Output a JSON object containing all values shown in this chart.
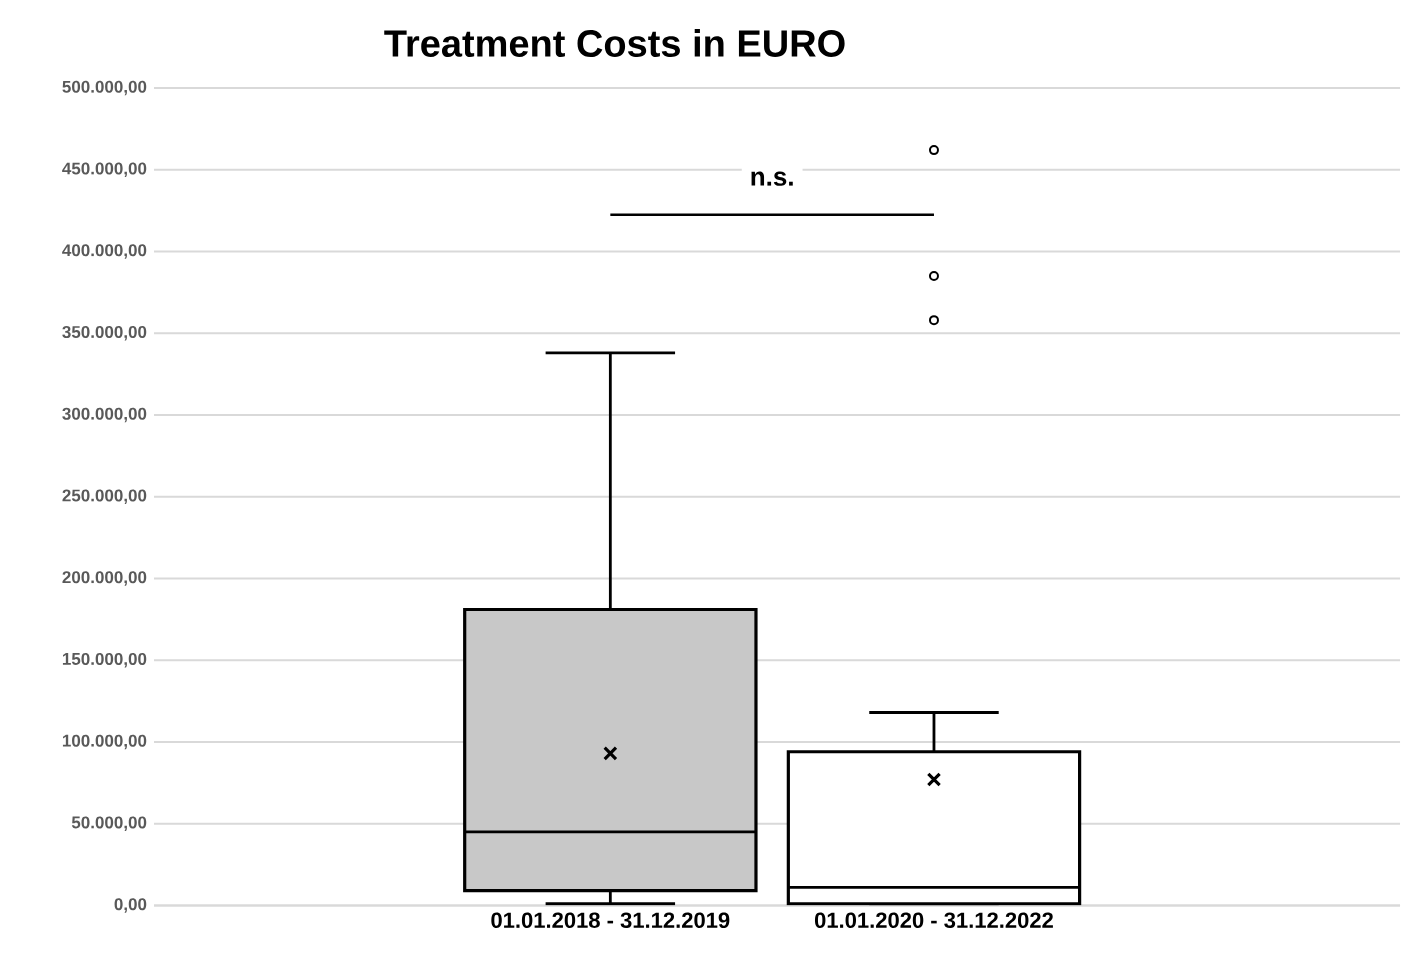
{
  "chart_data": {
    "type": "box",
    "title": "Treatment Costs in EURO",
    "categories": [
      "01.01.2018 - 31.12.2019",
      "01.01.2020 - 31.12.2022"
    ],
    "colors": [
      "#c8c8c8",
      "#ffffff"
    ],
    "boxes": [
      {
        "low": 1000,
        "q1": 9000,
        "median": 45000,
        "q3": 181000,
        "high": 338000,
        "mean": 93000
      },
      {
        "low": 1000,
        "q1": 1000,
        "median": 11000,
        "q3": 94000,
        "high": 118000,
        "mean": 77000,
        "outliers": [
          358000,
          385000,
          462000
        ]
      }
    ],
    "ylim": [
      0,
      500000
    ],
    "yticks": [
      {
        "value": 0,
        "label": "0,00"
      },
      {
        "value": 50000,
        "label": "50.000,00"
      },
      {
        "value": 100000,
        "label": "100.000,00"
      },
      {
        "value": 150000,
        "label": "150.000,00"
      },
      {
        "value": 200000,
        "label": "200.000,00"
      },
      {
        "value": 250000,
        "label": "250.000,00"
      },
      {
        "value": 300000,
        "label": "300.000,00"
      },
      {
        "value": 350000,
        "label": "350.000,00"
      },
      {
        "value": 400000,
        "label": "400.000,00"
      },
      {
        "value": 450000,
        "label": "450.000,00"
      },
      {
        "value": 500000,
        "label": "500.000,00"
      }
    ],
    "grid": "y",
    "annotations": [
      "n.s."
    ]
  }
}
